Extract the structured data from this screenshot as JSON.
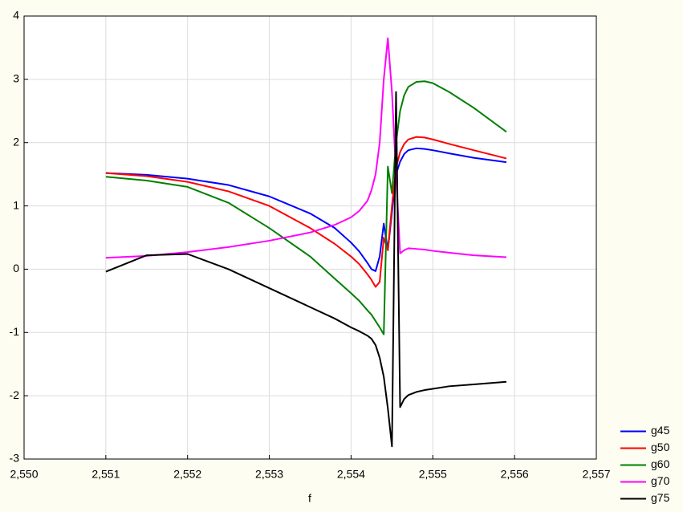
{
  "chart_data": {
    "type": "line",
    "x_label": "f",
    "x": [
      2.551,
      2.5515,
      2.552,
      2.5525,
      2.553,
      2.5535,
      2.5538,
      2.554,
      2.5541,
      2.5542,
      2.55425,
      2.5543,
      2.55435,
      2.5544,
      2.55445,
      2.5545,
      2.55455,
      2.5546,
      2.55465,
      2.5547,
      2.5548,
      2.5549,
      2.555,
      2.5552,
      2.5555,
      2.5559
    ],
    "series": [
      {
        "name": "g45",
        "color": "#0000ff",
        "values": [
          1.52,
          1.49,
          1.43,
          1.33,
          1.15,
          0.88,
          0.65,
          0.42,
          0.28,
          0.1,
          0.0,
          -0.03,
          0.2,
          0.72,
          0.3,
          0.9,
          1.5,
          1.7,
          1.82,
          1.88,
          1.91,
          1.9,
          1.88,
          1.83,
          1.76,
          1.69
        ]
      },
      {
        "name": "g50",
        "color": "#ff0000",
        "values": [
          1.52,
          1.47,
          1.38,
          1.23,
          1.0,
          0.65,
          0.4,
          0.2,
          0.08,
          -0.08,
          -0.17,
          -0.28,
          -0.2,
          0.5,
          0.3,
          1.0,
          1.6,
          1.85,
          1.98,
          2.05,
          2.09,
          2.08,
          2.05,
          1.98,
          1.88,
          1.75
        ]
      },
      {
        "name": "g60",
        "color": "#008000",
        "values": [
          1.46,
          1.4,
          1.3,
          1.05,
          0.65,
          0.2,
          -0.15,
          -0.38,
          -0.5,
          -0.65,
          -0.72,
          -0.82,
          -0.92,
          -1.03,
          1.62,
          1.2,
          2.0,
          2.5,
          2.75,
          2.88,
          2.96,
          2.97,
          2.94,
          2.8,
          2.55,
          2.17
        ]
      },
      {
        "name": "g70",
        "color": "#ff00ff",
        "values": [
          0.18,
          0.21,
          0.27,
          0.35,
          0.45,
          0.58,
          0.7,
          0.82,
          0.92,
          1.08,
          1.25,
          1.5,
          2.0,
          3.0,
          3.65,
          2.8,
          1.5,
          0.25,
          0.3,
          0.33,
          0.32,
          0.31,
          0.29,
          0.26,
          0.22,
          0.19
        ]
      },
      {
        "name": "g75",
        "color": "#000000",
        "values": [
          -0.04,
          0.22,
          0.24,
          0.0,
          -0.3,
          -0.6,
          -0.78,
          -0.92,
          -0.98,
          -1.05,
          -1.1,
          -1.2,
          -1.4,
          -1.7,
          -2.2,
          -2.8,
          2.8,
          -2.18,
          -2.05,
          -1.99,
          -1.94,
          -1.91,
          -1.89,
          -1.85,
          -1.82,
          -1.78
        ]
      }
    ],
    "xlim": [
      2.55,
      2.557
    ],
    "xticks": [
      {
        "value": 2.55,
        "label": "2,550"
      },
      {
        "value": 2.551,
        "label": "2,551"
      },
      {
        "value": 2.552,
        "label": "2,552"
      },
      {
        "value": 2.553,
        "label": "2,553"
      },
      {
        "value": 2.554,
        "label": "2,554"
      },
      {
        "value": 2.555,
        "label": "2,555"
      },
      {
        "value": 2.556,
        "label": "2,556"
      },
      {
        "value": 2.557,
        "label": "2,557"
      }
    ],
    "ylim": [
      -3,
      4
    ],
    "yticks": [
      -3,
      -2,
      -1,
      0,
      1,
      2,
      3,
      4
    ],
    "grid": true,
    "legend": "bottom-right"
  }
}
